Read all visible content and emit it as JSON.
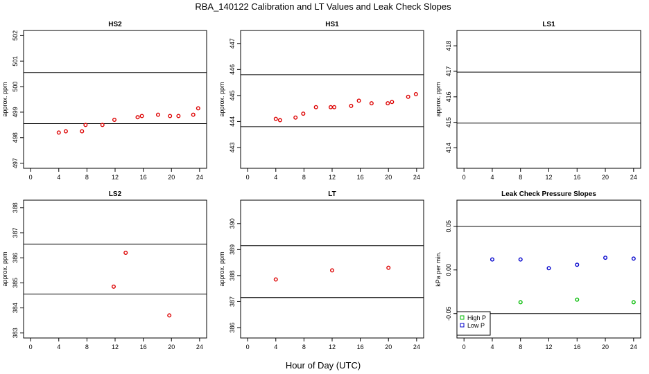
{
  "page": {
    "title": "RBA_140122  Calibration and LT Values and Leak Check Slopes",
    "xlabel": "Hour of Day (UTC)"
  },
  "colors": {
    "red": "#dd0000",
    "blue": "#0000cc",
    "green": "#00bb00",
    "axis": "#000000"
  },
  "chart_data": [
    {
      "id": "hs2",
      "type": "scatter",
      "title": "HS2",
      "ylabel": "approx. ppm",
      "xlim": [
        -1,
        25
      ],
      "ylim": [
        496.8,
        502.2
      ],
      "xticks": [
        0,
        4,
        8,
        12,
        16,
        20,
        24
      ],
      "yticks": [
        497,
        498,
        499,
        500,
        501,
        502
      ],
      "hlines": [
        498.55,
        500.55
      ],
      "series": [
        {
          "color": "#dd0000",
          "marker": "circle",
          "x": [
            4.0,
            5.0,
            7.3,
            7.8,
            10.2,
            11.9,
            15.2,
            15.8,
            18.1,
            19.8,
            21.0,
            23.1,
            23.8
          ],
          "y": [
            498.2,
            498.25,
            498.25,
            498.5,
            498.5,
            498.7,
            498.8,
            498.85,
            498.9,
            498.85,
            498.85,
            498.9,
            499.15
          ]
        }
      ]
    },
    {
      "id": "hs1",
      "type": "scatter",
      "title": "HS1",
      "ylabel": "approx. ppm",
      "xlim": [
        -1,
        25
      ],
      "ylim": [
        442.2,
        447.5
      ],
      "xticks": [
        0,
        4,
        8,
        12,
        16,
        20,
        24
      ],
      "yticks": [
        443,
        444,
        445,
        446,
        447
      ],
      "hlines": [
        443.8,
        445.8
      ],
      "series": [
        {
          "color": "#dd0000",
          "marker": "circle",
          "x": [
            4.0,
            4.6,
            6.8,
            7.9,
            9.7,
            11.8,
            12.3,
            14.7,
            15.8,
            17.6,
            19.9,
            20.5,
            22.8,
            23.9
          ],
          "y": [
            444.1,
            444.05,
            444.15,
            444.3,
            444.55,
            444.55,
            444.55,
            444.6,
            444.8,
            444.7,
            444.7,
            444.75,
            444.95,
            445.05
          ]
        }
      ]
    },
    {
      "id": "ls1",
      "type": "scatter",
      "title": "LS1",
      "ylabel": "approx. ppm",
      "xlim": [
        -1,
        25
      ],
      "ylim": [
        413.2,
        418.6
      ],
      "xticks": [
        0,
        4,
        8,
        12,
        16,
        20,
        24
      ],
      "yticks": [
        414,
        415,
        416,
        417,
        418
      ],
      "hlines": [
        414.97,
        416.97
      ],
      "series": []
    },
    {
      "id": "ls2",
      "type": "scatter",
      "title": "LS2",
      "ylabel": "approx. ppm",
      "xlim": [
        -1,
        25
      ],
      "ylim": [
        382.8,
        388.3
      ],
      "xticks": [
        0,
        4,
        8,
        12,
        16,
        20,
        24
      ],
      "yticks": [
        383,
        384,
        385,
        386,
        387,
        388
      ],
      "hlines": [
        384.55,
        386.55
      ],
      "series": [
        {
          "color": "#dd0000",
          "marker": "circle",
          "x": [
            11.8,
            13.5,
            19.7
          ],
          "y": [
            384.85,
            386.2,
            383.7
          ]
        }
      ]
    },
    {
      "id": "lt",
      "type": "scatter",
      "title": "LT",
      "ylabel": "approx. ppm",
      "xlim": [
        -1,
        25
      ],
      "ylim": [
        385.6,
        390.9
      ],
      "xticks": [
        0,
        4,
        8,
        12,
        16,
        20,
        24
      ],
      "yticks": [
        386,
        387,
        388,
        389,
        390
      ],
      "hlines": [
        387.15,
        389.15
      ],
      "series": [
        {
          "color": "#dd0000",
          "marker": "circle",
          "x": [
            4.0,
            12.0,
            20.0
          ],
          "y": [
            387.85,
            388.2,
            388.3
          ]
        }
      ]
    },
    {
      "id": "leak",
      "type": "scatter",
      "title": "Leak Check Pressure Slopes",
      "ylabel": "kPa per min.",
      "xlim": [
        -1,
        25
      ],
      "ylim": [
        -0.078,
        0.08
      ],
      "xticks": [
        0,
        4,
        8,
        12,
        16,
        20,
        24
      ],
      "yticks": [
        -0.05,
        0.0,
        0.05
      ],
      "ytick_labels": [
        "-0.05",
        "0.00",
        "0.05"
      ],
      "hlines": [
        -0.05,
        0.05
      ],
      "legend": {
        "position": "bottom-left",
        "entries": [
          {
            "label": "High P",
            "color": "#00bb00"
          },
          {
            "label": "Low P",
            "color": "#0000cc"
          }
        ]
      },
      "series": [
        {
          "name": "High P",
          "color": "#00bb00",
          "marker": "circle",
          "x": [
            8,
            16,
            24
          ],
          "y": [
            -0.037,
            -0.034,
            -0.037
          ]
        },
        {
          "name": "Low P",
          "color": "#0000cc",
          "marker": "circle",
          "x": [
            4,
            8,
            12,
            16,
            20,
            24
          ],
          "y": [
            0.012,
            0.012,
            0.002,
            0.006,
            0.014,
            0.013
          ]
        }
      ]
    }
  ]
}
